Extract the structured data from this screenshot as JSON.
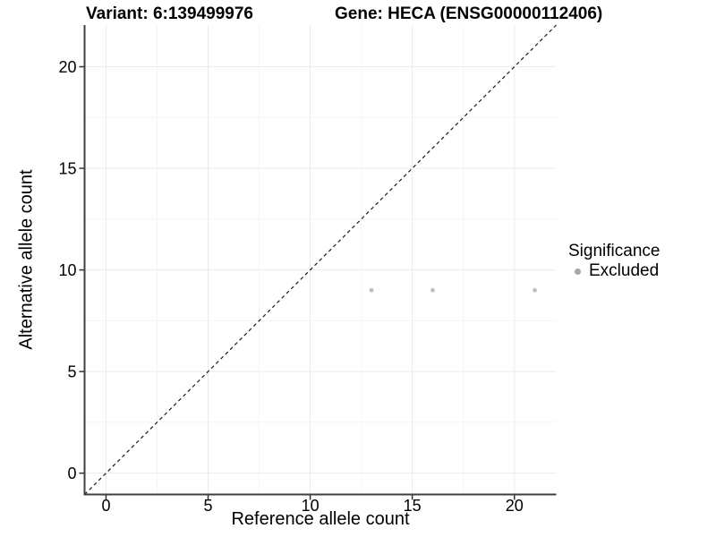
{
  "header": {
    "variant_title": "Variant: 6:139499976",
    "gene_title": "Gene: HECA (ENSG00000112406)"
  },
  "chart_data": {
    "type": "scatter",
    "xlabel": "Reference allele count",
    "ylabel": "Alternative allele count",
    "xlim": [
      -1.05,
      22.05
    ],
    "ylim": [
      -1.05,
      22.05
    ],
    "x_ticks": [
      0,
      5,
      10,
      15,
      20
    ],
    "y_ticks": [
      0,
      5,
      10,
      15,
      20
    ],
    "x_minor_gridlines": [
      2.5,
      7.5,
      12.5,
      17.5
    ],
    "y_minor_gridlines": [
      2.5,
      7.5,
      12.5,
      17.5
    ],
    "grid": true,
    "series": [
      {
        "name": "Excluded",
        "color": "#bfbfbf",
        "points": [
          {
            "x": 13,
            "y": 9
          },
          {
            "x": 16,
            "y": 9
          },
          {
            "x": 21,
            "y": 9
          }
        ]
      }
    ],
    "reference_line": {
      "kind": "identity",
      "from": [
        -1.05,
        -1.05
      ],
      "to": [
        22.05,
        22.05
      ],
      "style": "dashed",
      "color": "#1a1a1a"
    },
    "legend": {
      "title": "Significance",
      "position": "right",
      "items": [
        {
          "label": "Excluded",
          "color": "#a6a6a6"
        }
      ]
    }
  },
  "colors": {
    "background": "#ffffff",
    "grid_major": "#ebebeb",
    "grid_minor": "#f4f4f4",
    "axis_line": "#3f3f3f",
    "tick_mark": "#333333",
    "text": "#000000"
  }
}
